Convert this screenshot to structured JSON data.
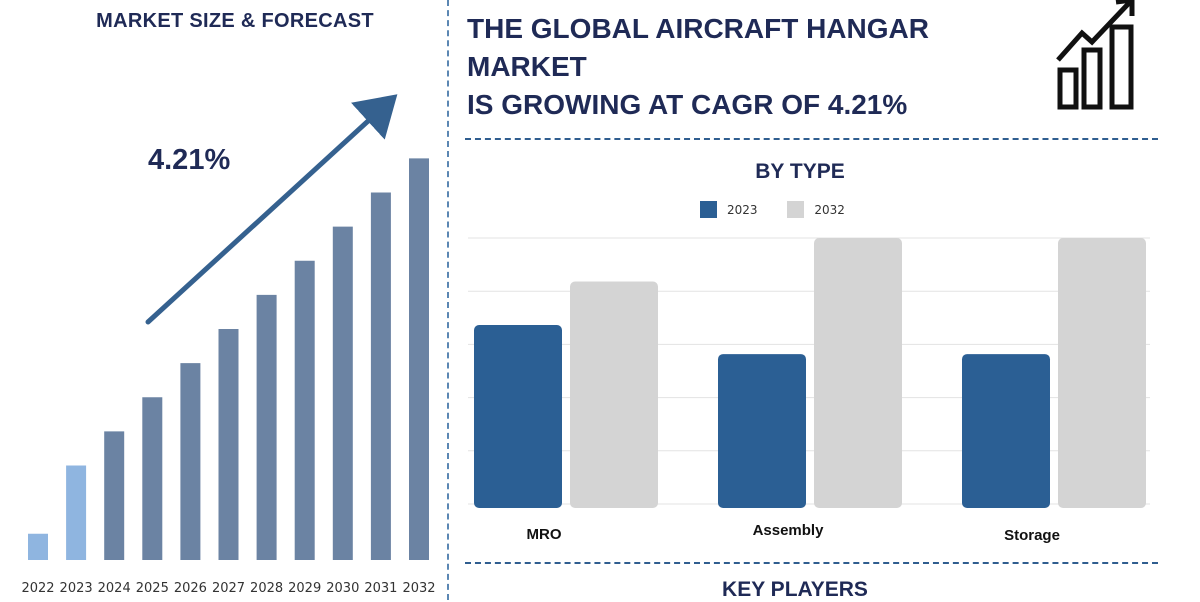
{
  "left_panel": {
    "title": "MARKET SIZE & FORECAST",
    "cagr_label": "4.21%"
  },
  "right_panel": {
    "headline_line1": "THE GLOBAL AIRCRAFT HANGAR MARKET",
    "headline_line2": "IS GROWING AT CAGR OF 4.21%",
    "by_type_title": "BY TYPE",
    "key_players_title": "KEY PLAYERS"
  },
  "icons": {
    "header": "bar-chart-growth-icon",
    "trend": "trend-arrow-icon"
  },
  "colors": {
    "navy": "#1f2a56",
    "bar_dark": "#6b83a3",
    "bar_light": "#8fb5e0",
    "type_2023": "#2b5f94",
    "type_2032": "#d4d4d4"
  },
  "chart_data": [
    {
      "type": "bar",
      "title": "MARKET SIZE & FORECAST",
      "categories": [
        "2022",
        "2023",
        "2024",
        "2025",
        "2026",
        "2027",
        "2028",
        "2029",
        "2030",
        "2031",
        "2032"
      ],
      "values": [
        1.0,
        3.6,
        4.9,
        6.2,
        7.5,
        8.8,
        10.1,
        11.4,
        12.7,
        14.0,
        15.3
      ],
      "highlighted": [
        "2022",
        "2023"
      ],
      "annotation": "4.21%",
      "ylim": [
        0,
        16
      ]
    },
    {
      "type": "bar",
      "title": "BY TYPE",
      "categories": [
        "MRO",
        "Assembly",
        "Storage"
      ],
      "series": [
        {
          "name": "2023",
          "values": [
            3.7,
            3.1,
            3.1
          ]
        },
        {
          "name": "2032",
          "values": [
            4.6,
            5.5,
            5.5
          ]
        }
      ],
      "ylim": [
        0,
        5.5
      ],
      "grid": true,
      "legend": "top-center"
    }
  ]
}
